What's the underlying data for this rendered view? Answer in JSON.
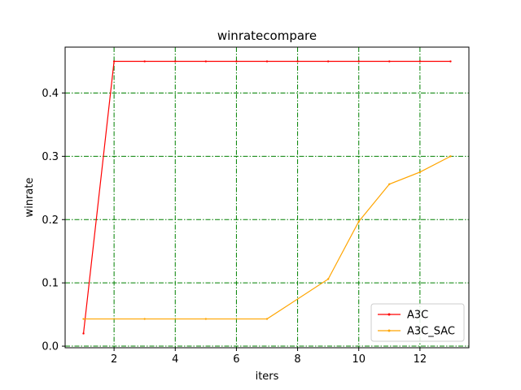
{
  "chart_data": {
    "type": "line",
    "title": "winratecompare",
    "xlabel": "iters",
    "ylabel": "winrate",
    "xlim": [
      0.4,
      13.6
    ],
    "ylim": [
      -0.0025,
      0.4725
    ],
    "xticks": [
      2,
      4,
      6,
      8,
      10,
      12
    ],
    "yticks": [
      0.0,
      0.1,
      0.2,
      0.3,
      0.4
    ],
    "xtick_labels": [
      "2",
      "4",
      "6",
      "8",
      "10",
      "12"
    ],
    "ytick_labels": [
      "0.0",
      "0.1",
      "0.2",
      "0.3",
      "0.4"
    ],
    "grid": true,
    "grid_color": "#008000",
    "legend_position": "lower-right",
    "series": [
      {
        "name": "A3C",
        "color": "#ff0000",
        "marker": true,
        "x": [
          1,
          2,
          3,
          4,
          5,
          6,
          7,
          8,
          9,
          10,
          11,
          12,
          13
        ],
        "y": [
          0.02,
          0.45,
          0.45,
          0.45,
          0.45,
          0.45,
          0.45,
          0.45,
          0.45,
          0.45,
          0.45,
          0.45,
          0.45
        ]
      },
      {
        "name": "A3C_SAC",
        "color": "#ffa500",
        "marker": true,
        "x": [
          1,
          3,
          5,
          7,
          9,
          10,
          11,
          12,
          13
        ],
        "y": [
          0.043,
          0.043,
          0.043,
          0.043,
          0.106,
          0.197,
          0.256,
          0.275,
          0.3
        ]
      }
    ]
  }
}
